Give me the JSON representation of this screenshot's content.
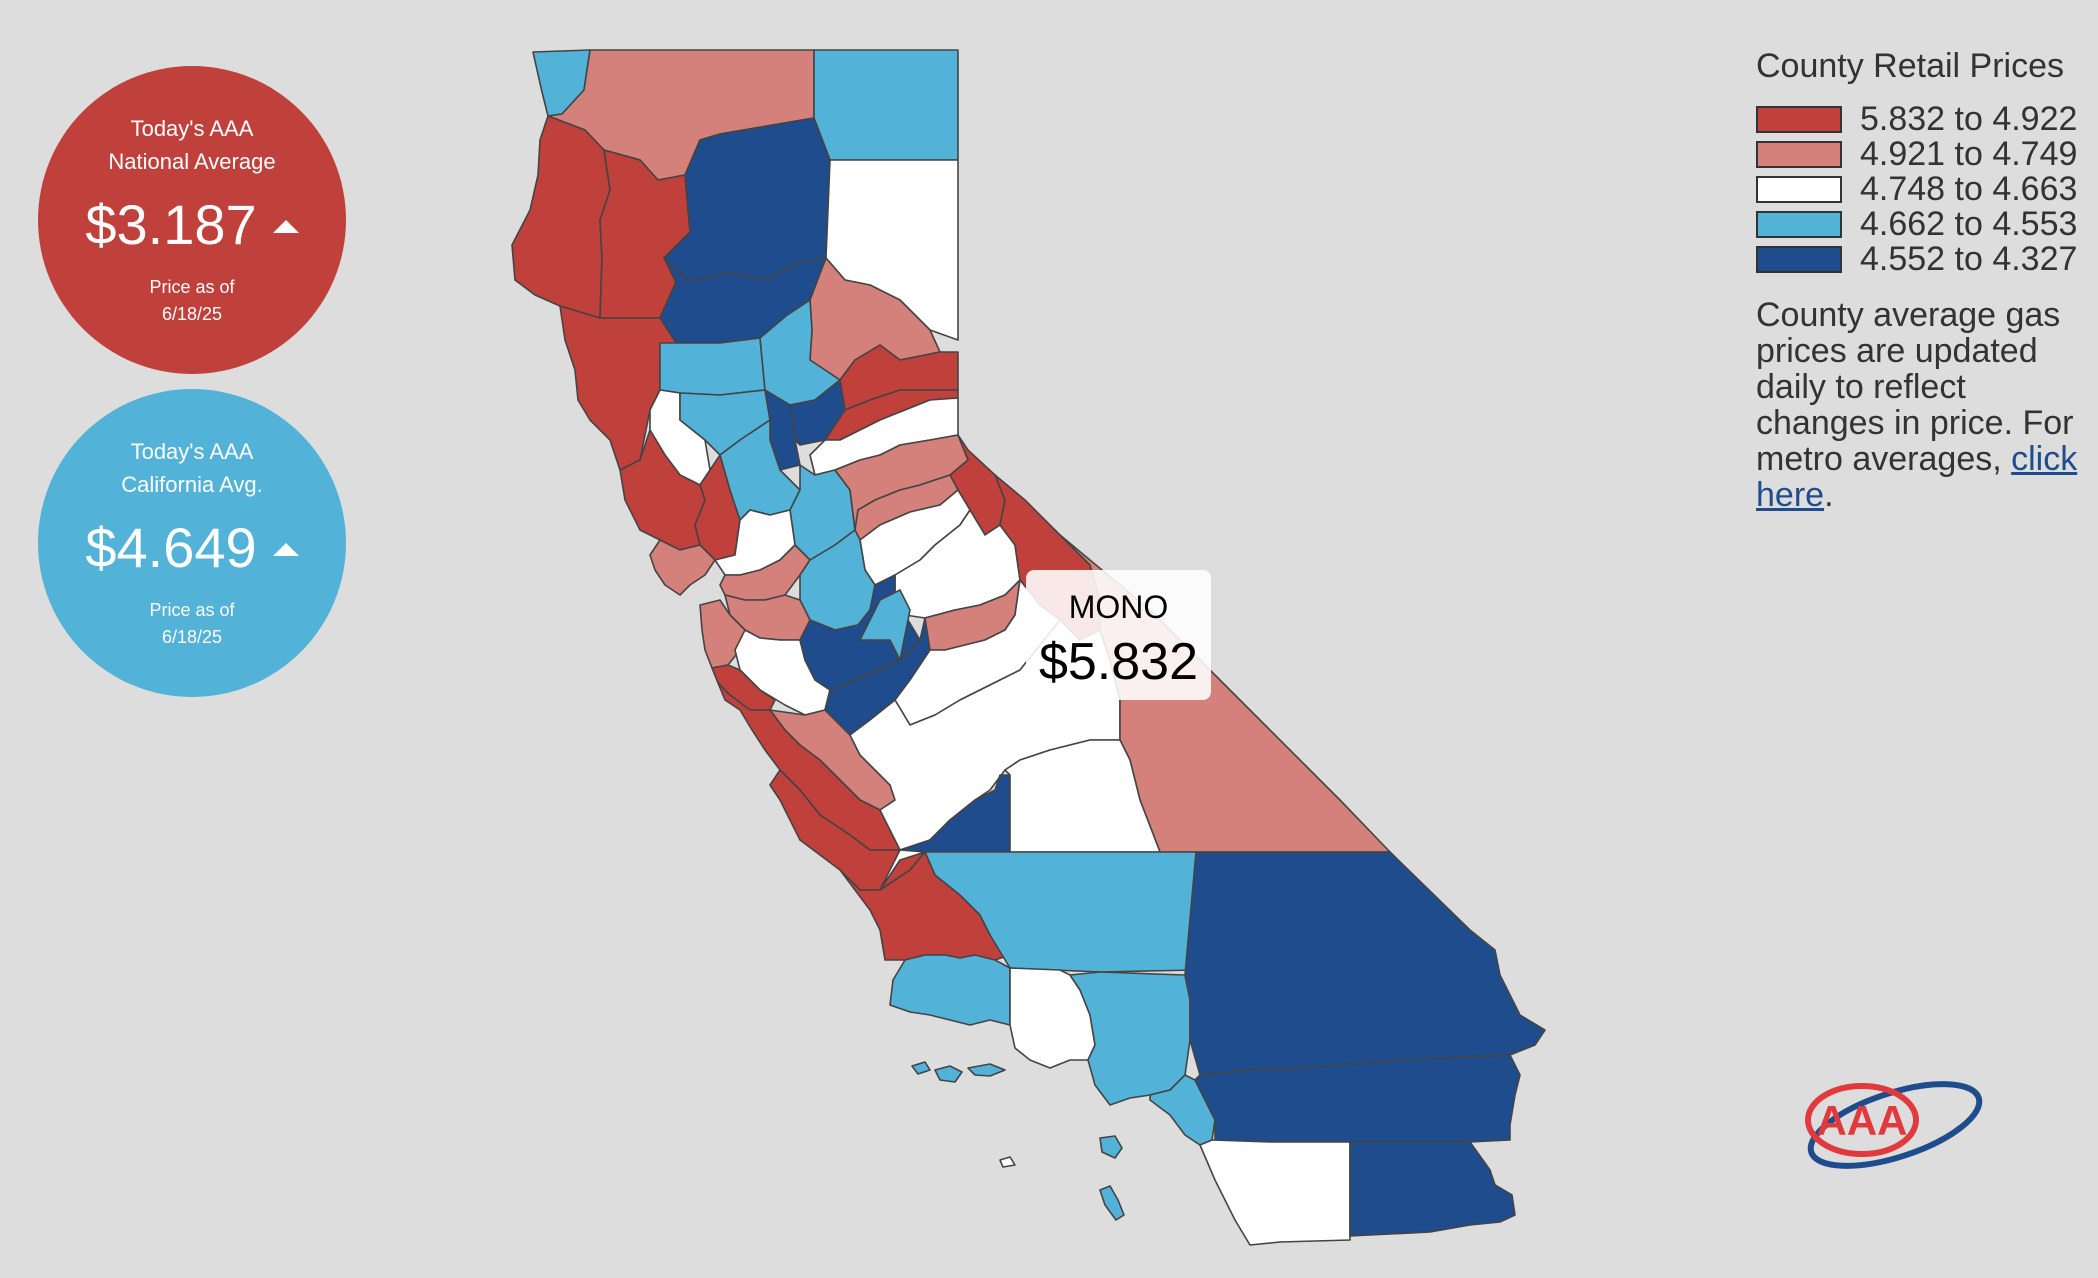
{
  "national": {
    "title_line1": "Today's AAA",
    "title_line2": "National Average",
    "price": "$3.187",
    "trend": "up",
    "date_line1": "Price as of",
    "date_line2": "6/18/25",
    "color": "#c0403c"
  },
  "state": {
    "title_line1": "Today's AAA",
    "title_line2": "California Avg.",
    "price": "$4.649",
    "trend": "up",
    "date_line1": "Price as of",
    "date_line2": "6/18/25",
    "color": "#52b2d8"
  },
  "tooltip": {
    "county": "MONO",
    "price": "$5.832"
  },
  "legend": {
    "title": "County Retail Prices",
    "items": [
      {
        "label": "5.832 to 4.922",
        "color": "#c0403c"
      },
      {
        "label": "4.921 to 4.749",
        "color": "#d4807b"
      },
      {
        "label": "4.748 to 4.663",
        "color": "#ffffff"
      },
      {
        "label": "4.662 to 4.553",
        "color": "#52b2d8"
      },
      {
        "label": "4.552 to 4.327",
        "color": "#1e4c8c"
      }
    ],
    "note_before": "County average gas prices are updated daily to reflect changes in price. For metro averages, ",
    "link_text": "click here",
    "note_after": "."
  },
  "map_colors": {
    "red": "#c0403c",
    "pink": "#d4807b",
    "white": "#ffffff",
    "light_blue": "#52b2d8",
    "dark_blue": "#1e4c8c"
  },
  "logo": {
    "text": "AAA",
    "red": "#e03a3e",
    "blue": "#1e4c8c"
  }
}
